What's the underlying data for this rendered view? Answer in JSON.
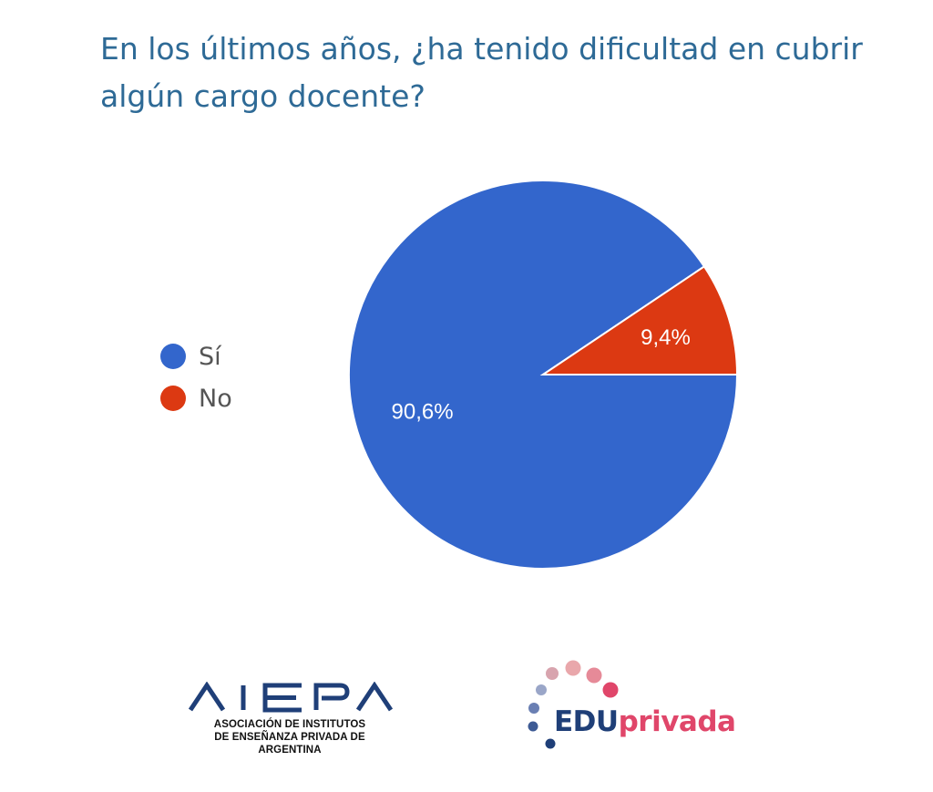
{
  "chart_data": {
    "type": "pie",
    "title": "En los últimos años, ¿ha tenido dificultad en cubrir algún cargo docente?",
    "slices": [
      {
        "label": "Sí",
        "value": 90.6,
        "display": "90,6%",
        "color": "#3366cc"
      },
      {
        "label": "No",
        "value": 9.4,
        "display": "9,4%",
        "color": "#dc3912"
      }
    ],
    "legend_position": "left"
  },
  "logos": {
    "aiepa": {
      "name": "AIEPA",
      "line1": "ASOCIACIÓN DE INSTITUTOS",
      "line2": "DE ENSEÑANZA PRIVADA DE ARGENTINA",
      "color": "#1f3f78"
    },
    "eduprivada": {
      "part1": "EDU",
      "part2": "privada",
      "color1": "#1f3f78",
      "color2": "#e0466a"
    }
  }
}
